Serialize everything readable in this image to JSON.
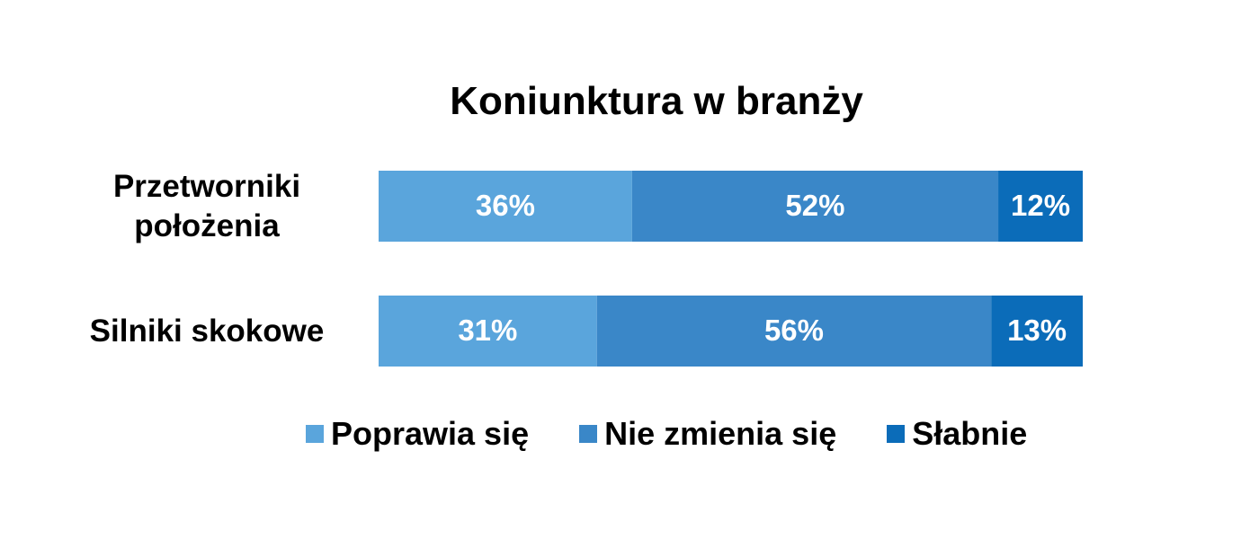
{
  "chart_data": {
    "type": "stacked-bar-horizontal",
    "title": "Koniunktura w branży",
    "categories": [
      "Przetworniki położenia",
      "Silniki skokowe"
    ],
    "series": [
      {
        "name": "Poprawia się",
        "color": "#5aa5dc",
        "values": [
          36,
          31
        ],
        "value_labels": [
          "36%",
          "31%"
        ]
      },
      {
        "name": "Nie zmienia się",
        "color": "#3a87c8",
        "values": [
          52,
          56
        ],
        "value_labels": [
          "52%",
          "56%"
        ]
      },
      {
        "name": "Słabnie",
        "color": "#0b6cb9",
        "values": [
          12,
          13
        ],
        "value_labels": [
          "12%",
          "13%"
        ]
      }
    ],
    "legend": "bottom"
  }
}
